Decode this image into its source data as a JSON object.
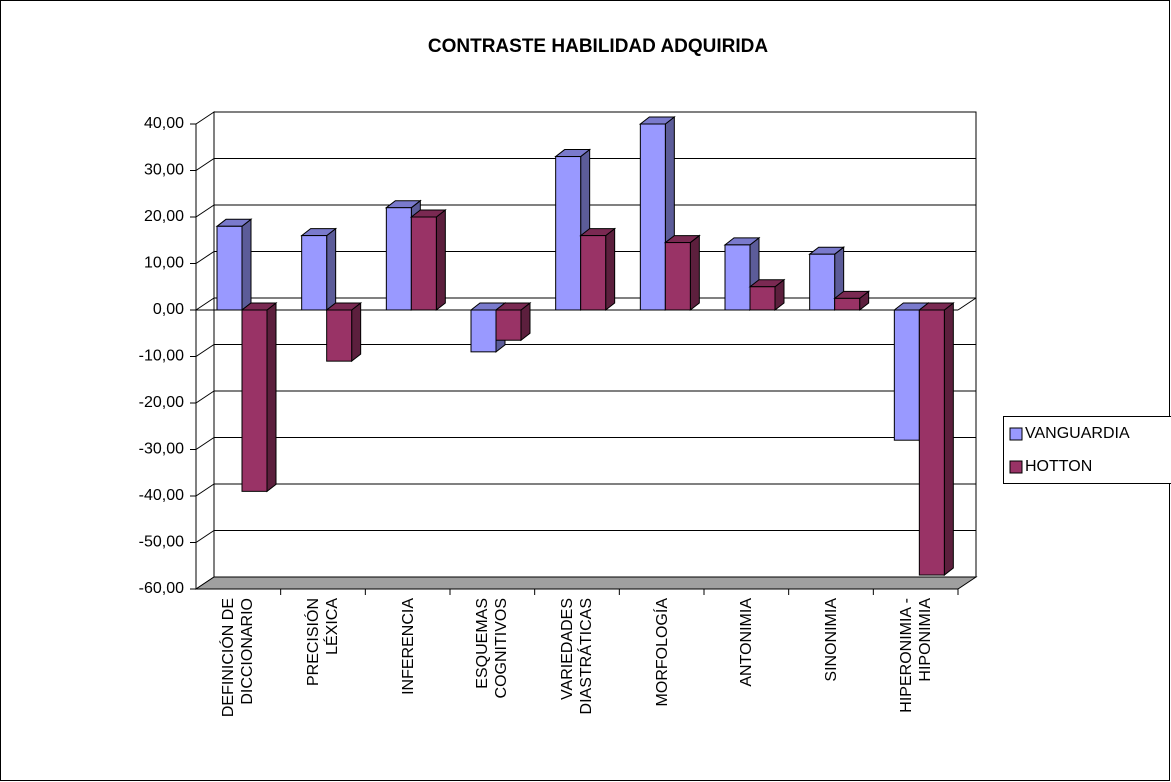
{
  "chart_data": {
    "type": "bar",
    "title": "CONTRASTE HABILIDAD ADQUIRIDA",
    "categories": [
      "DEFINICIÓN DE\nDICCIONARIO",
      "PRECISIÓN\nLÉXICA",
      "INFERENCIA",
      "ESQUEMAS\nCOGNITIVOS",
      "VARIEDADES\nDIASTRÁTICAS",
      "MORFOLOGÍA",
      "ANTONIMIA",
      "SINONIMIA",
      "HIPERONIMIA -\nHIPONIMIA"
    ],
    "series": [
      {
        "name": "VANGUARDIA",
        "color": "#9999ff",
        "values": [
          18,
          16,
          22,
          -9,
          33,
          40,
          14,
          12,
          -28
        ]
      },
      {
        "name": "HOTTON",
        "color": "#993366",
        "values": [
          -39,
          -11,
          20,
          -6.5,
          16,
          14.5,
          5,
          2.5,
          -57
        ]
      }
    ],
    "ylim": [
      -60,
      40
    ],
    "yticks": [
      {
        "value": -60,
        "label": "-60,00"
      },
      {
        "value": -50,
        "label": "-50,00"
      },
      {
        "value": -40,
        "label": "-40,00"
      },
      {
        "value": -30,
        "label": "-30,00"
      },
      {
        "value": -20,
        "label": "-20,00"
      },
      {
        "value": -10,
        "label": "-10,00"
      },
      {
        "value": 0,
        "label": "0,00"
      },
      {
        "value": 10,
        "label": "10,00"
      },
      {
        "value": 20,
        "label": "20,00"
      },
      {
        "value": 30,
        "label": "30,00"
      },
      {
        "value": 40,
        "label": "40,00"
      }
    ],
    "grid": true,
    "legend": "right"
  }
}
